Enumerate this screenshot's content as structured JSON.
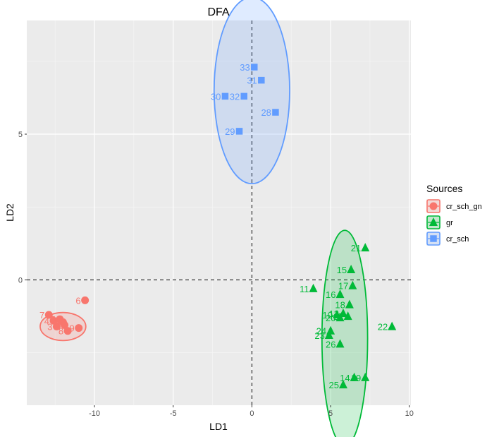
{
  "chart_data": {
    "type": "scatter",
    "title": "DFA",
    "xlabel": "LD1",
    "ylabel": "LD2",
    "xlim": [
      -14.3,
      10.1
    ],
    "ylim": [
      -4.3,
      8.9
    ],
    "x_ticks": [
      -10,
      -5,
      0,
      5,
      10
    ],
    "y_ticks": [
      0,
      5
    ],
    "reference_lines": {
      "x": 0,
      "y": 0,
      "style": "dashed"
    },
    "grid": true,
    "legend": {
      "title": "Sources",
      "position": "right"
    },
    "series": [
      {
        "name": "cr_sch_gn",
        "color": "#F8766D",
        "marker": "circle",
        "ellipse": {
          "cx": -12.0,
          "cy": -1.6,
          "rx": 1.45,
          "ry": 0.48
        },
        "points": [
          {
            "label": "6",
            "x": -10.6,
            "y": -0.7
          },
          {
            "label": "7",
            "x": -12.9,
            "y": -1.2
          },
          {
            "label": "4",
            "x": -12.6,
            "y": -1.4
          },
          {
            "label": "5",
            "x": -12.2,
            "y": -1.35
          },
          {
            "label": "1",
            "x": -12.0,
            "y": -1.45
          },
          {
            "label": "3",
            "x": -12.4,
            "y": -1.6
          },
          {
            "label": "2",
            "x": -11.9,
            "y": -1.55
          },
          {
            "label": "8",
            "x": -11.7,
            "y": -1.75
          },
          {
            "label": "9",
            "x": -11.0,
            "y": -1.65
          }
        ]
      },
      {
        "name": "gr",
        "color": "#00BA38",
        "marker": "triangle",
        "ellipse": {
          "cx": 5.9,
          "cy": -2.0,
          "rx": 1.45,
          "ry": 3.7
        },
        "points": [
          {
            "label": "21",
            "x": 7.2,
            "y": 1.1
          },
          {
            "label": "15",
            "x": 6.3,
            "y": 0.35
          },
          {
            "label": "11",
            "x": 3.9,
            "y": -0.3
          },
          {
            "label": "17",
            "x": 6.4,
            "y": -0.2
          },
          {
            "label": "16",
            "x": 5.6,
            "y": -0.5
          },
          {
            "label": "18",
            "x": 6.2,
            "y": -0.85
          },
          {
            "label": "10",
            "x": 5.4,
            "y": -1.2
          },
          {
            "label": "12",
            "x": 5.8,
            "y": -1.15
          },
          {
            "label": "20",
            "x": 5.6,
            "y": -1.3
          },
          {
            "label": "27",
            "x": 6.1,
            "y": -1.25
          },
          {
            "label": "22",
            "x": 8.9,
            "y": -1.6
          },
          {
            "label": "24",
            "x": 5.0,
            "y": -1.75
          },
          {
            "label": "23",
            "x": 4.9,
            "y": -1.9
          },
          {
            "label": "26",
            "x": 5.6,
            "y": -2.2
          },
          {
            "label": "25",
            "x": 5.8,
            "y": -3.6
          },
          {
            "label": "14",
            "x": 6.5,
            "y": -3.35
          },
          {
            "label": "19",
            "x": 7.2,
            "y": -3.35
          }
        ]
      },
      {
        "name": "cr_sch",
        "color": "#619CFF",
        "marker": "square",
        "ellipse": {
          "cx": 0.0,
          "cy": 6.5,
          "rx": 2.4,
          "ry": 3.2
        },
        "points": [
          {
            "label": "33",
            "x": 0.15,
            "y": 7.3
          },
          {
            "label": "31",
            "x": 0.6,
            "y": 6.85
          },
          {
            "label": "30",
            "x": -1.7,
            "y": 6.3
          },
          {
            "label": "32",
            "x": -0.5,
            "y": 6.3
          },
          {
            "label": "28",
            "x": 1.5,
            "y": 5.75
          },
          {
            "label": "29",
            "x": -0.8,
            "y": 5.1
          }
        ]
      }
    ]
  }
}
